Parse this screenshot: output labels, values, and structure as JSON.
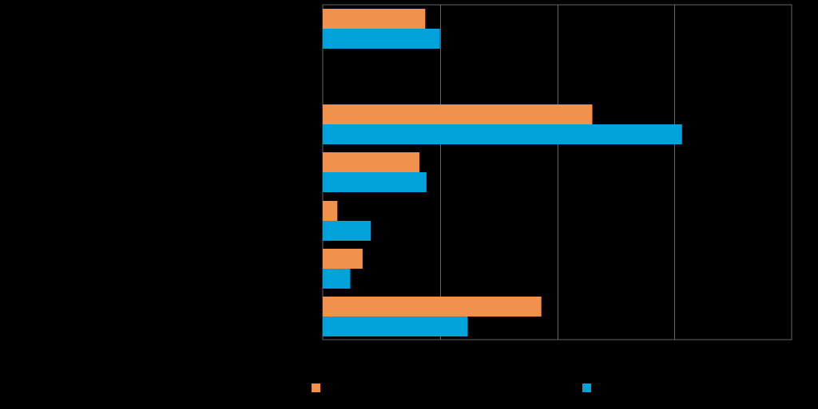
{
  "chart_data": {
    "type": "bar",
    "orientation": "horizontal",
    "categories": [
      "",
      "",
      "",
      "",
      "",
      ""
    ],
    "series": [
      {
        "values": [
          17.5,
          46,
          16.5,
          2.5,
          6.8,
          37.3
        ]
      },
      {
        "values": [
          20,
          61.3,
          17.7,
          8.2,
          4.7,
          24.7
        ]
      }
    ],
    "xlim": [
      0,
      80
    ],
    "grid": true,
    "legend": "bottom",
    "title": "",
    "xlabel": "",
    "ylabel": ""
  },
  "colors": {
    "background": "#000000",
    "series_0": "#F0914E",
    "series_1": "#00A3D9",
    "grid": "#666666"
  }
}
